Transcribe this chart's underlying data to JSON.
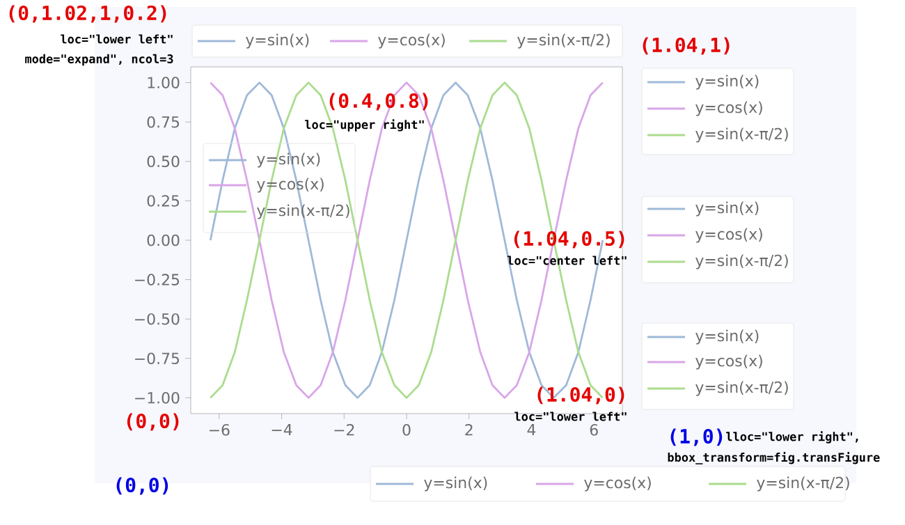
{
  "chart_data": {
    "type": "line",
    "x": [
      -6.28,
      -5.89,
      -5.5,
      -5.11,
      -4.71,
      -4.32,
      -3.93,
      -3.53,
      -3.14,
      -2.75,
      -2.36,
      -1.96,
      -1.57,
      -1.18,
      -0.79,
      -0.39,
      0,
      0.39,
      0.79,
      1.18,
      1.57,
      1.96,
      2.36,
      2.75,
      3.14,
      3.53,
      3.93,
      4.32,
      4.71,
      5.11,
      5.5,
      5.89,
      6.28
    ],
    "series": [
      {
        "name": "y=sin(x)",
        "color": "#9fb9d8",
        "values": [
          0,
          0.38,
          0.71,
          0.92,
          1,
          0.92,
          0.71,
          0.38,
          0,
          -0.38,
          -0.71,
          -0.92,
          -1,
          -0.92,
          -0.71,
          -0.38,
          0,
          0.38,
          0.71,
          0.92,
          1,
          0.92,
          0.71,
          0.38,
          0,
          -0.38,
          -0.71,
          -0.92,
          -1,
          -0.92,
          -0.71,
          -0.38,
          0
        ]
      },
      {
        "name": "y=cos(x)",
        "color": "#d9a5e8",
        "values": [
          1,
          0.92,
          0.71,
          0.38,
          0,
          -0.38,
          -0.71,
          -0.92,
          -1,
          -0.92,
          -0.71,
          -0.38,
          0,
          0.38,
          0.71,
          0.92,
          1,
          0.92,
          0.71,
          0.38,
          0,
          -0.38,
          -0.71,
          -0.92,
          -1,
          -0.92,
          -0.71,
          -0.38,
          0,
          0.38,
          0.71,
          0.92,
          1
        ]
      },
      {
        "name": "y=sin(x-π/2)",
        "color": "#abdc8e",
        "values": [
          -1,
          -0.92,
          -0.71,
          -0.38,
          0,
          0.38,
          0.71,
          0.92,
          1,
          0.92,
          0.71,
          0.38,
          0,
          -0.38,
          -0.71,
          -0.92,
          -1,
          -0.92,
          -0.71,
          -0.38,
          0,
          0.38,
          0.71,
          0.92,
          1,
          0.92,
          0.71,
          0.38,
          0,
          -0.38,
          -0.71,
          -0.92,
          -1
        ]
      }
    ],
    "xlim": [
      -6.91,
      6.91
    ],
    "ylim": [
      -1.1,
      1.1
    ],
    "xticks": [
      {
        "value": -6,
        "label": "−6"
      },
      {
        "value": -4,
        "label": "−4"
      },
      {
        "value": -2,
        "label": "−2"
      },
      0,
      2,
      4,
      6
    ],
    "yticks": [
      {
        "value": -1,
        "label": "−1.00"
      },
      {
        "value": -0.75,
        "label": "−0.75"
      },
      {
        "value": -0.5,
        "label": "−0.50"
      },
      {
        "value": -0.25,
        "label": "−0.25"
      },
      {
        "value": 0,
        "label": "0.00"
      },
      {
        "value": 0.25,
        "label": "0.25"
      },
      {
        "value": 0.5,
        "label": "0.50"
      },
      {
        "value": 0.75,
        "label": "0.75"
      },
      {
        "value": 1,
        "label": "1.00"
      }
    ],
    "grid": false,
    "legend": "top",
    "line_style": "solid",
    "marker": "none",
    "annotations": [
      "(0,1.02,1,0.2)",
      "loc=\"lower left\"",
      "mode=\"expand\", ncol=3",
      "(0.4,0.8)",
      "loc=\"upper right\"",
      "(1.04,1)",
      "(1.04,0.5)",
      "loc=\"center left\"",
      "(1.04,0)",
      "loc=\"lower left\"",
      "(0,0)",
      "(1,0)",
      "lloc=\"lower right\",",
      "bbox_transform=fig.transFigure",
      "(0,0)"
    ]
  }
}
